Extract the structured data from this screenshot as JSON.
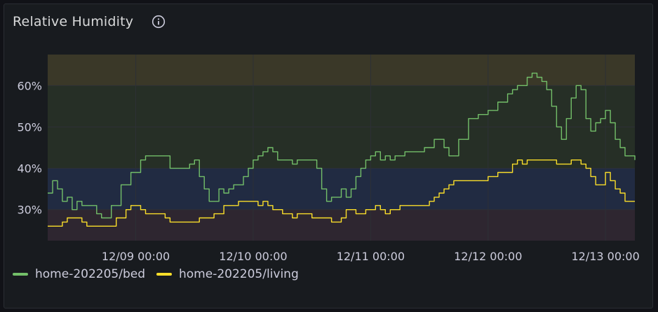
{
  "panel": {
    "title": "Relative Humidity",
    "info_icon": "info-circle-icon"
  },
  "colors": {
    "background": "#181b1f",
    "band_high": "#3a3828",
    "band_ok": "#262f26",
    "band_low": "#212b42",
    "band_very_low": "#2e2630",
    "grid": "#2d3036",
    "bed": "#73bf69",
    "living": "#fade2a",
    "text": "#ccccdc"
  },
  "chart_data": {
    "type": "line",
    "title": "Relative Humidity",
    "xlabel": "",
    "ylabel": "",
    "ylim": [
      22.5,
      67.5
    ],
    "xlim": [
      "12/08 06:00",
      "12/13 06:00"
    ],
    "x_ticks": [
      {
        "x": "12/09 00:00",
        "label": "12/09 00:00"
      },
      {
        "x": "12/10 00:00",
        "label": "12/10 00:00"
      },
      {
        "x": "12/11 00:00",
        "label": "12/11 00:00"
      },
      {
        "x": "12/12 00:00",
        "label": "12/12 00:00"
      },
      {
        "x": "12/13 00:00",
        "label": "12/13 00:00"
      }
    ],
    "y_ticks": [
      {
        "y": 30,
        "label": "30%"
      },
      {
        "y": 40,
        "label": "40%"
      },
      {
        "y": 50,
        "label": "50%"
      },
      {
        "y": 60,
        "label": "60%"
      }
    ],
    "threshold_bands": [
      {
        "from": 60,
        "to": 67.5,
        "color_key": "band_high"
      },
      {
        "from": 40,
        "to": 60,
        "color_key": "band_ok"
      },
      {
        "from": 30,
        "to": 40,
        "color_key": "band_low"
      },
      {
        "from": 22.5,
        "to": 30,
        "color_key": "band_very_low"
      }
    ],
    "legend_position": "bottom-left",
    "series": [
      {
        "name": "home-202205/bed",
        "color_key": "bed",
        "points": [
          [
            "12/08 06:00",
            34
          ],
          [
            "12/08 07:00",
            37
          ],
          [
            "12/08 08:00",
            35
          ],
          [
            "12/08 09:00",
            32
          ],
          [
            "12/08 10:00",
            33
          ],
          [
            "12/08 11:00",
            30
          ],
          [
            "12/08 12:00",
            32
          ],
          [
            "12/08 13:00",
            31
          ],
          [
            "12/08 15:00",
            31
          ],
          [
            "12/08 16:00",
            29
          ],
          [
            "12/08 17:00",
            28
          ],
          [
            "12/08 19:00",
            31
          ],
          [
            "12/08 21:00",
            36
          ],
          [
            "12/08 23:00",
            39
          ],
          [
            "12/09 01:00",
            42
          ],
          [
            "12/09 02:00",
            43
          ],
          [
            "12/09 05:00",
            43
          ],
          [
            "12/09 07:00",
            40
          ],
          [
            "12/09 09:00",
            40
          ],
          [
            "12/09 11:00",
            41
          ],
          [
            "12/09 12:00",
            42
          ],
          [
            "12/09 13:00",
            38
          ],
          [
            "12/09 14:00",
            35
          ],
          [
            "12/09 15:00",
            32
          ],
          [
            "12/09 16:00",
            32
          ],
          [
            "12/09 17:00",
            35
          ],
          [
            "12/09 18:00",
            34
          ],
          [
            "12/09 19:00",
            35
          ],
          [
            "12/09 20:00",
            36
          ],
          [
            "12/09 21:00",
            36
          ],
          [
            "12/09 22:00",
            38
          ],
          [
            "12/09 23:00",
            40
          ],
          [
            "12/10 00:00",
            42
          ],
          [
            "12/10 01:00",
            43
          ],
          [
            "12/10 02:00",
            44
          ],
          [
            "12/10 03:00",
            45
          ],
          [
            "12/10 04:00",
            44
          ],
          [
            "12/10 05:00",
            42
          ],
          [
            "12/10 07:00",
            42
          ],
          [
            "12/10 08:00",
            41
          ],
          [
            "12/10 09:00",
            42
          ],
          [
            "12/10 12:00",
            42
          ],
          [
            "12/10 13:00",
            40
          ],
          [
            "12/10 14:00",
            35
          ],
          [
            "12/10 15:00",
            32
          ],
          [
            "12/10 16:00",
            33
          ],
          [
            "12/10 17:00",
            33
          ],
          [
            "12/10 18:00",
            35
          ],
          [
            "12/10 19:00",
            33
          ],
          [
            "12/10 20:00",
            35
          ],
          [
            "12/10 21:00",
            38
          ],
          [
            "12/10 22:00",
            40
          ],
          [
            "12/10 23:00",
            42
          ],
          [
            "12/11 00:00",
            43
          ],
          [
            "12/11 01:00",
            44
          ],
          [
            "12/11 02:00",
            42
          ],
          [
            "12/11 03:00",
            43
          ],
          [
            "12/11 04:00",
            42
          ],
          [
            "12/11 05:00",
            43
          ],
          [
            "12/11 07:00",
            44
          ],
          [
            "12/11 09:00",
            44
          ],
          [
            "12/11 11:00",
            45
          ],
          [
            "12/11 13:00",
            47
          ],
          [
            "12/11 14:00",
            47
          ],
          [
            "12/11 15:00",
            45
          ],
          [
            "12/11 16:00",
            43
          ],
          [
            "12/11 18:00",
            47
          ],
          [
            "12/11 20:00",
            52
          ],
          [
            "12/11 22:00",
            53
          ],
          [
            "12/12 00:00",
            54
          ],
          [
            "12/12 02:00",
            56
          ],
          [
            "12/12 04:00",
            58
          ],
          [
            "12/12 05:00",
            59
          ],
          [
            "12/12 06:00",
            60
          ],
          [
            "12/12 08:00",
            62
          ],
          [
            "12/12 09:00",
            63
          ],
          [
            "12/12 10:00",
            62
          ],
          [
            "12/12 11:00",
            61
          ],
          [
            "12/12 12:00",
            59
          ],
          [
            "12/12 13:00",
            55
          ],
          [
            "12/12 14:00",
            50
          ],
          [
            "12/12 15:00",
            47
          ],
          [
            "12/12 16:00",
            52
          ],
          [
            "12/12 17:00",
            57
          ],
          [
            "12/12 18:00",
            60
          ],
          [
            "12/12 19:00",
            59
          ],
          [
            "12/12 20:00",
            52
          ],
          [
            "12/12 21:00",
            49
          ],
          [
            "12/12 22:00",
            51
          ],
          [
            "12/12 23:00",
            52
          ],
          [
            "12/13 00:00",
            54
          ],
          [
            "12/13 01:00",
            51
          ],
          [
            "12/13 02:00",
            47
          ],
          [
            "12/13 03:00",
            45
          ],
          [
            "12/13 04:00",
            43
          ],
          [
            "12/13 05:00",
            43
          ],
          [
            "12/13 06:00",
            42
          ]
        ]
      },
      {
        "name": "home-202205/living",
        "color_key": "living",
        "points": [
          [
            "12/08 06:00",
            26
          ],
          [
            "12/08 08:00",
            26
          ],
          [
            "12/08 09:00",
            27
          ],
          [
            "12/08 10:00",
            28
          ],
          [
            "12/08 12:00",
            28
          ],
          [
            "12/08 13:00",
            27
          ],
          [
            "12/08 14:00",
            26
          ],
          [
            "12/08 18:00",
            26
          ],
          [
            "12/08 20:00",
            28
          ],
          [
            "12/08 22:00",
            30
          ],
          [
            "12/08 23:00",
            31
          ],
          [
            "12/09 01:00",
            30
          ],
          [
            "12/09 02:00",
            29
          ],
          [
            "12/09 04:00",
            29
          ],
          [
            "12/09 06:00",
            28
          ],
          [
            "12/09 07:00",
            27
          ],
          [
            "12/09 10:00",
            27
          ],
          [
            "12/09 12:00",
            27
          ],
          [
            "12/09 13:00",
            28
          ],
          [
            "12/09 15:00",
            28
          ],
          [
            "12/09 16:00",
            29
          ],
          [
            "12/09 17:00",
            29
          ],
          [
            "12/09 18:00",
            31
          ],
          [
            "12/09 20:00",
            31
          ],
          [
            "12/09 21:00",
            32
          ],
          [
            "12/09 23:00",
            32
          ],
          [
            "12/10 00:00",
            32
          ],
          [
            "12/10 01:00",
            31
          ],
          [
            "12/10 02:00",
            32
          ],
          [
            "12/10 03:00",
            31
          ],
          [
            "12/10 04:00",
            30
          ],
          [
            "12/10 06:00",
            29
          ],
          [
            "12/10 08:00",
            28
          ],
          [
            "12/10 09:00",
            29
          ],
          [
            "12/10 12:00",
            28
          ],
          [
            "12/10 14:00",
            28
          ],
          [
            "12/10 16:00",
            27
          ],
          [
            "12/10 17:00",
            27
          ],
          [
            "12/10 18:00",
            28
          ],
          [
            "12/10 19:00",
            30
          ],
          [
            "12/10 20:00",
            30
          ],
          [
            "12/10 21:00",
            29
          ],
          [
            "12/10 23:00",
            30
          ],
          [
            "12/11 01:00",
            31
          ],
          [
            "12/11 02:00",
            30
          ],
          [
            "12/11 03:00",
            29
          ],
          [
            "12/11 04:00",
            30
          ],
          [
            "12/11 05:00",
            30
          ],
          [
            "12/11 06:00",
            31
          ],
          [
            "12/11 09:00",
            31
          ],
          [
            "12/11 10:00",
            31
          ],
          [
            "12/11 12:00",
            32
          ],
          [
            "12/11 13:00",
            33
          ],
          [
            "12/11 14:00",
            34
          ],
          [
            "12/11 15:00",
            35
          ],
          [
            "12/11 16:00",
            36
          ],
          [
            "12/11 17:00",
            37
          ],
          [
            "12/11 22:00",
            37
          ],
          [
            "12/11 23:00",
            37
          ],
          [
            "12/12 00:00",
            38
          ],
          [
            "12/12 01:00",
            38
          ],
          [
            "12/12 02:00",
            39
          ],
          [
            "12/12 03:00",
            39
          ],
          [
            "12/12 05:00",
            41
          ],
          [
            "12/12 06:00",
            42
          ],
          [
            "12/12 07:00",
            41
          ],
          [
            "12/12 08:00",
            42
          ],
          [
            "12/12 09:00",
            42
          ],
          [
            "12/12 12:00",
            42
          ],
          [
            "12/12 14:00",
            41
          ],
          [
            "12/12 15:00",
            41
          ],
          [
            "12/12 17:00",
            42
          ],
          [
            "12/12 19:00",
            41
          ],
          [
            "12/12 20:00",
            40
          ],
          [
            "12/12 21:00",
            38
          ],
          [
            "12/12 22:00",
            36
          ],
          [
            "12/12 23:00",
            36
          ],
          [
            "12/13 00:00",
            39
          ],
          [
            "12/13 01:00",
            37
          ],
          [
            "12/13 02:00",
            35
          ],
          [
            "12/13 03:00",
            34
          ],
          [
            "12/13 04:00",
            32
          ],
          [
            "12/13 06:00",
            32
          ]
        ]
      }
    ]
  }
}
